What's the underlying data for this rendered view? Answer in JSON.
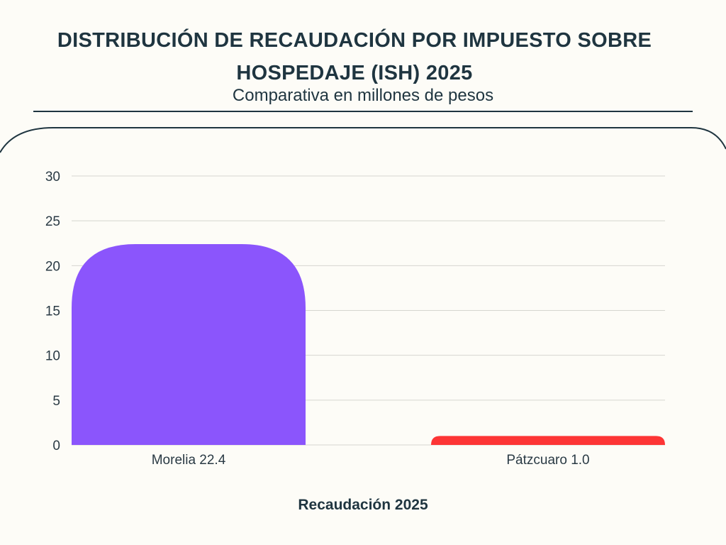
{
  "chart_data": {
    "type": "bar",
    "title": "DISTRIBUCIÓN DE RECAUDACIÓN POR IMPUESTO SOBRE HOSPEDAJE (ISH) 2025",
    "subtitle": "Comparativa en millones de pesos",
    "categories": [
      "Morelia 22.4",
      "Pátzcuaro 1.0"
    ],
    "values": [
      22.4,
      1.0
    ],
    "colors": [
      "#8b55fc",
      "#fd3535"
    ],
    "xlabel": "Recaudación 2025",
    "ylabel": "",
    "ylim": [
      0,
      30
    ],
    "yticks": [
      "0",
      "5",
      "10",
      "15",
      "20",
      "25",
      "30"
    ],
    "grid": true
  }
}
